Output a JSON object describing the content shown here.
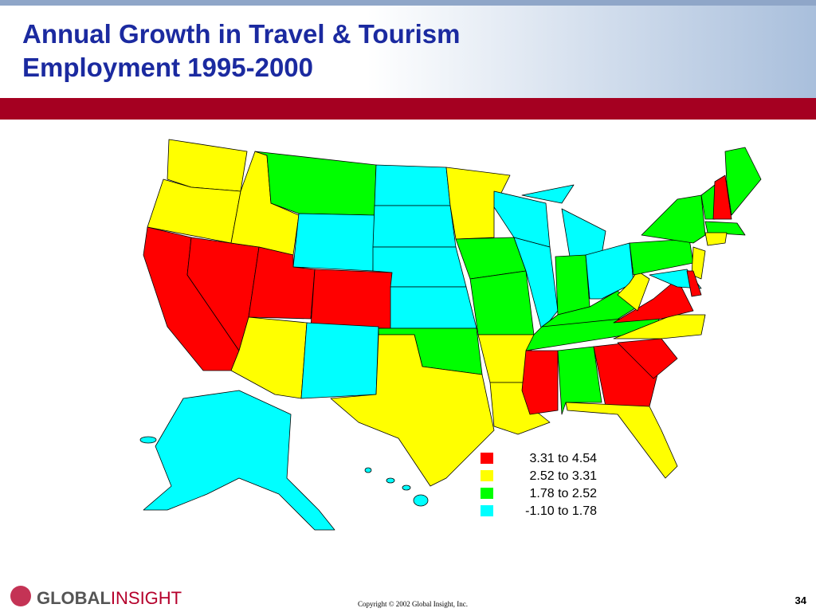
{
  "header": {
    "title_lines": [
      "Annual Growth in Travel & Tourism",
      "Employment 1995-2000"
    ]
  },
  "legend": {
    "items": [
      {
        "label": "3.31 to 4.54",
        "color": "#ff0000"
      },
      {
        "label": "2.52 to 3.31",
        "color": "#ffff00"
      },
      {
        "label": "1.78 to 2.52",
        "color": "#00ff00"
      },
      {
        "label": "-1.10 to 1.78",
        "color": "#00ffff"
      }
    ]
  },
  "footer": {
    "logo_bold": "GLOBAL",
    "logo_light": "INSIGHT",
    "copyright": "Copyright © 2002 Global Insight, Inc.",
    "page": "34"
  }
}
